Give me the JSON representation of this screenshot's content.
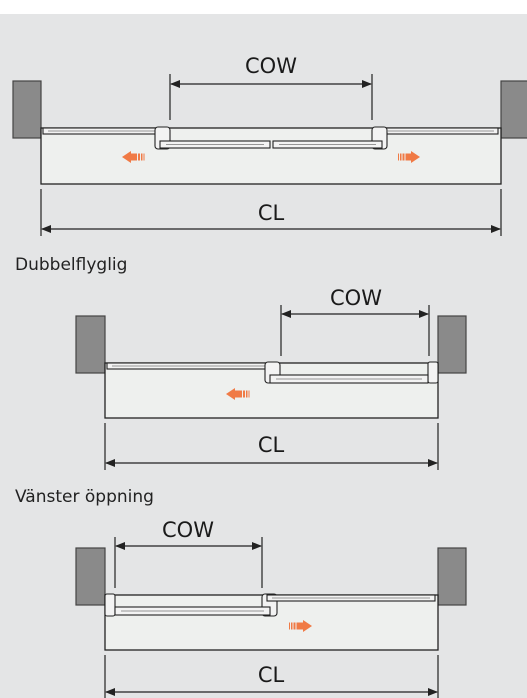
{
  "labels": {
    "cow": "COW",
    "cl": "CL"
  },
  "captions": {
    "double_leaf": "Dubbelflyglig",
    "left_opening": "Vänster öppning"
  },
  "colors": {
    "background": "#e4e5e6",
    "wall": "#8a8a8a",
    "floor": "#eef0ee",
    "direction_arrow": "#f07a45"
  },
  "icons": {
    "direction_arrow": "orange-movement-arrow"
  }
}
